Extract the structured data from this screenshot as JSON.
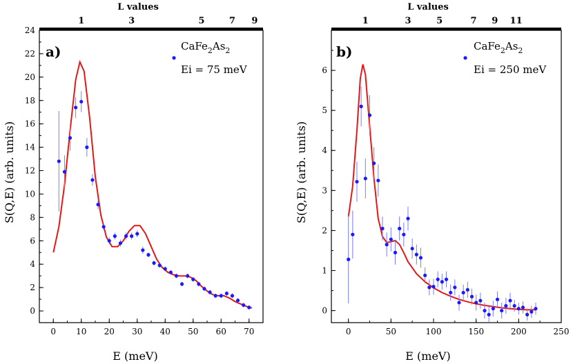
{
  "chart_data": [
    {
      "type": "scatter",
      "panel": "a)",
      "xlabel": "E (meV)",
      "ylabel": "S(Q,E) (arb. units)",
      "xlim": [
        -5,
        75
      ],
      "ylim": [
        -1,
        24
      ],
      "x_ticks": [
        0,
        10,
        20,
        30,
        40,
        50,
        60,
        70
      ],
      "y_ticks": [
        0,
        2,
        4,
        6,
        8,
        10,
        12,
        14,
        16,
        18,
        20,
        22,
        24
      ],
      "top_axis": {
        "title": "L values",
        "ticks": [
          {
            "label": "1",
            "x": 10
          },
          {
            "label": "3",
            "x": 28
          },
          {
            "label": "5",
            "x": 53
          },
          {
            "label": "7",
            "x": 64
          },
          {
            "label": "9",
            "x": 72
          }
        ]
      },
      "legend": {
        "formula": [
          "CaFe",
          "2",
          "As",
          "2"
        ],
        "ei": "Ei = 75 meV",
        "position": "top-right"
      },
      "series": [
        {
          "name": "data",
          "color": "#1a1aff",
          "points": [
            {
              "x": 2,
              "y": 12.8,
              "err": 4.3
            },
            {
              "x": 4,
              "y": 11.9,
              "err": 1.4
            },
            {
              "x": 6,
              "y": 14.8,
              "err": 1.1
            },
            {
              "x": 8,
              "y": 17.4,
              "err": 0.9
            },
            {
              "x": 10,
              "y": 17.9,
              "err": 0.9
            },
            {
              "x": 12,
              "y": 14.0,
              "err": 0.8
            },
            {
              "x": 14,
              "y": 11.2,
              "err": 0.5
            },
            {
              "x": 16,
              "y": 9.1,
              "err": 0.4
            },
            {
              "x": 18,
              "y": 7.2,
              "err": 0.3
            },
            {
              "x": 20,
              "y": 6.0,
              "err": 0.3
            },
            {
              "x": 22,
              "y": 6.4,
              "err": 0.3
            },
            {
              "x": 24,
              "y": 5.8,
              "err": 0.3
            },
            {
              "x": 26,
              "y": 6.4,
              "err": 0.3
            },
            {
              "x": 28,
              "y": 6.4,
              "err": 0.3
            },
            {
              "x": 30,
              "y": 6.6,
              "err": 0.3
            },
            {
              "x": 32,
              "y": 5.2,
              "err": 0.3
            },
            {
              "x": 34,
              "y": 4.8,
              "err": 0.2
            },
            {
              "x": 36,
              "y": 4.1,
              "err": 0.2
            },
            {
              "x": 38,
              "y": 3.9,
              "err": 0.2
            },
            {
              "x": 40,
              "y": 3.6,
              "err": 0.2
            },
            {
              "x": 42,
              "y": 3.3,
              "err": 0.2
            },
            {
              "x": 44,
              "y": 3.0,
              "err": 0.2
            },
            {
              "x": 46,
              "y": 2.3,
              "err": 0.2
            },
            {
              "x": 48,
              "y": 3.0,
              "err": 0.2
            },
            {
              "x": 50,
              "y": 2.7,
              "err": 0.2
            },
            {
              "x": 52,
              "y": 2.3,
              "err": 0.2
            },
            {
              "x": 54,
              "y": 1.9,
              "err": 0.2
            },
            {
              "x": 56,
              "y": 1.6,
              "err": 0.2
            },
            {
              "x": 58,
              "y": 1.3,
              "err": 0.2
            },
            {
              "x": 60,
              "y": 1.3,
              "err": 0.2
            },
            {
              "x": 62,
              "y": 1.5,
              "err": 0.2
            },
            {
              "x": 64,
              "y": 1.3,
              "err": 0.2
            },
            {
              "x": 66,
              "y": 0.9,
              "err": 0.2
            },
            {
              "x": 68,
              "y": 0.5,
              "err": 0.2
            },
            {
              "x": 70,
              "y": 0.3,
              "err": 0.2
            }
          ]
        },
        {
          "name": "fit",
          "color": "#e81515",
          "curve": [
            {
              "x": 0,
              "y": 5.0
            },
            {
              "x": 2,
              "y": 7.2
            },
            {
              "x": 4,
              "y": 10.8
            },
            {
              "x": 6,
              "y": 15.5
            },
            {
              "x": 8,
              "y": 19.8
            },
            {
              "x": 9.5,
              "y": 21.3
            },
            {
              "x": 11,
              "y": 20.5
            },
            {
              "x": 13,
              "y": 16.5
            },
            {
              "x": 15,
              "y": 11.5
            },
            {
              "x": 17,
              "y": 8.2
            },
            {
              "x": 19,
              "y": 6.3
            },
            {
              "x": 21,
              "y": 5.5
            },
            {
              "x": 23,
              "y": 5.5
            },
            {
              "x": 25,
              "y": 6.0
            },
            {
              "x": 27,
              "y": 6.8
            },
            {
              "x": 29,
              "y": 7.3
            },
            {
              "x": 31,
              "y": 7.3
            },
            {
              "x": 33,
              "y": 6.6
            },
            {
              "x": 35,
              "y": 5.5
            },
            {
              "x": 37,
              "y": 4.4
            },
            {
              "x": 39,
              "y": 3.7
            },
            {
              "x": 41,
              "y": 3.3
            },
            {
              "x": 43,
              "y": 3.1
            },
            {
              "x": 45,
              "y": 3.0
            },
            {
              "x": 47,
              "y": 3.0
            },
            {
              "x": 49,
              "y": 2.9
            },
            {
              "x": 51,
              "y": 2.6
            },
            {
              "x": 53,
              "y": 2.1
            },
            {
              "x": 55,
              "y": 1.7
            },
            {
              "x": 57,
              "y": 1.4
            },
            {
              "x": 59,
              "y": 1.3
            },
            {
              "x": 61,
              "y": 1.3
            },
            {
              "x": 63,
              "y": 1.1
            },
            {
              "x": 65,
              "y": 0.8
            },
            {
              "x": 67,
              "y": 0.6
            },
            {
              "x": 69,
              "y": 0.4
            },
            {
              "x": 71,
              "y": 0.25
            }
          ]
        }
      ]
    },
    {
      "type": "scatter",
      "panel": "b)",
      "xlabel": "E (meV)",
      "ylabel": "S(Q,E) (arb. units)",
      "xlim": [
        -20,
        250
      ],
      "ylim": [
        -0.3,
        7.0
      ],
      "x_ticks": [
        0,
        50,
        100,
        150,
        200,
        250
      ],
      "y_ticks": [
        0,
        1,
        2,
        3,
        4,
        5,
        6
      ],
      "top_axis": {
        "title": "L values",
        "ticks": [
          {
            "label": "1",
            "x": 20
          },
          {
            "label": "3",
            "x": 70
          },
          {
            "label": "5",
            "x": 107
          },
          {
            "label": "7",
            "x": 147
          },
          {
            "label": "9",
            "x": 172
          },
          {
            "label": "11",
            "x": 197
          }
        ]
      },
      "legend": {
        "formula": [
          "CaFe",
          "2",
          "As",
          "2"
        ],
        "ei": "Ei = 250 meV",
        "position": "top-right"
      },
      "series": [
        {
          "name": "data",
          "color": "#1a1aff",
          "points": [
            {
              "x": 0,
              "y": 1.28,
              "err": 1.1
            },
            {
              "x": 5,
              "y": 1.9,
              "err": 0.6
            },
            {
              "x": 10,
              "y": 3.22,
              "err": 0.5
            },
            {
              "x": 15,
              "y": 5.1,
              "err": 0.5
            },
            {
              "x": 20,
              "y": 3.3,
              "err": 0.5
            },
            {
              "x": 25,
              "y": 4.88,
              "err": 0.5
            },
            {
              "x": 30,
              "y": 3.68,
              "err": 0.4
            },
            {
              "x": 35,
              "y": 3.25,
              "err": 0.4
            },
            {
              "x": 40,
              "y": 2.05,
              "err": 0.3
            },
            {
              "x": 45,
              "y": 1.65,
              "err": 0.3
            },
            {
              "x": 50,
              "y": 1.78,
              "err": 0.3
            },
            {
              "x": 55,
              "y": 1.45,
              "err": 0.3
            },
            {
              "x": 60,
              "y": 2.05,
              "err": 0.3
            },
            {
              "x": 65,
              "y": 1.9,
              "err": 0.3
            },
            {
              "x": 70,
              "y": 2.3,
              "err": 0.3
            },
            {
              "x": 75,
              "y": 1.55,
              "err": 0.25
            },
            {
              "x": 80,
              "y": 1.4,
              "err": 0.25
            },
            {
              "x": 85,
              "y": 1.32,
              "err": 0.25
            },
            {
              "x": 90,
              "y": 0.88,
              "err": 0.2
            },
            {
              "x": 95,
              "y": 0.58,
              "err": 0.2
            },
            {
              "x": 100,
              "y": 0.6,
              "err": 0.2
            },
            {
              "x": 105,
              "y": 0.78,
              "err": 0.2
            },
            {
              "x": 110,
              "y": 0.72,
              "err": 0.2
            },
            {
              "x": 115,
              "y": 0.78,
              "err": 0.2
            },
            {
              "x": 120,
              "y": 0.45,
              "err": 0.2
            },
            {
              "x": 125,
              "y": 0.58,
              "err": 0.2
            },
            {
              "x": 130,
              "y": 0.2,
              "err": 0.2
            },
            {
              "x": 135,
              "y": 0.45,
              "err": 0.2
            },
            {
              "x": 140,
              "y": 0.52,
              "err": 0.2
            },
            {
              "x": 145,
              "y": 0.35,
              "err": 0.2
            },
            {
              "x": 150,
              "y": 0.2,
              "err": 0.2
            },
            {
              "x": 155,
              "y": 0.25,
              "err": 0.2
            },
            {
              "x": 160,
              "y": 0.0,
              "err": 0.2
            },
            {
              "x": 165,
              "y": -0.1,
              "err": 0.2
            },
            {
              "x": 170,
              "y": 0.05,
              "err": 0.2
            },
            {
              "x": 175,
              "y": 0.28,
              "err": 0.2
            },
            {
              "x": 180,
              "y": 0.0,
              "err": 0.2
            },
            {
              "x": 185,
              "y": 0.12,
              "err": 0.2
            },
            {
              "x": 190,
              "y": 0.25,
              "err": 0.2
            },
            {
              "x": 195,
              "y": 0.12,
              "err": 0.15
            },
            {
              "x": 200,
              "y": 0.05,
              "err": 0.15
            },
            {
              "x": 205,
              "y": 0.08,
              "err": 0.15
            },
            {
              "x": 210,
              "y": -0.1,
              "err": 0.15
            },
            {
              "x": 215,
              "y": -0.03,
              "err": 0.15
            },
            {
              "x": 220,
              "y": 0.05,
              "err": 0.15
            }
          ]
        },
        {
          "name": "fit",
          "color": "#e81515",
          "curve": [
            {
              "x": 0,
              "y": 2.35
            },
            {
              "x": 5,
              "y": 3.1
            },
            {
              "x": 10,
              "y": 4.5
            },
            {
              "x": 14,
              "y": 5.8
            },
            {
              "x": 17,
              "y": 6.15
            },
            {
              "x": 20,
              "y": 5.9
            },
            {
              "x": 25,
              "y": 4.6
            },
            {
              "x": 30,
              "y": 3.3
            },
            {
              "x": 35,
              "y": 2.3
            },
            {
              "x": 40,
              "y": 1.85
            },
            {
              "x": 45,
              "y": 1.7
            },
            {
              "x": 50,
              "y": 1.72
            },
            {
              "x": 55,
              "y": 1.75
            },
            {
              "x": 60,
              "y": 1.65
            },
            {
              "x": 65,
              "y": 1.45
            },
            {
              "x": 70,
              "y": 1.22
            },
            {
              "x": 80,
              "y": 0.92
            },
            {
              "x": 90,
              "y": 0.72
            },
            {
              "x": 100,
              "y": 0.57
            },
            {
              "x": 110,
              "y": 0.45
            },
            {
              "x": 120,
              "y": 0.36
            },
            {
              "x": 130,
              "y": 0.28
            },
            {
              "x": 140,
              "y": 0.22
            },
            {
              "x": 150,
              "y": 0.17
            },
            {
              "x": 160,
              "y": 0.13
            },
            {
              "x": 170,
              "y": 0.1
            },
            {
              "x": 180,
              "y": 0.07
            },
            {
              "x": 190,
              "y": 0.05
            },
            {
              "x": 200,
              "y": 0.03
            },
            {
              "x": 210,
              "y": 0.02
            },
            {
              "x": 220,
              "y": 0.02
            }
          ]
        }
      ]
    }
  ]
}
